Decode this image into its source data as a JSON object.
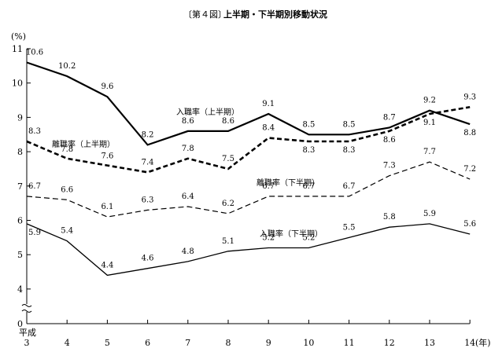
{
  "chart_data": {
    "type": "line",
    "figure_label": "〔第４図〕",
    "title": "上半期・下半期別移動状況",
    "y_unit": "(%)",
    "x_unit": "(年)",
    "x_era": "平成",
    "categories": [
      "3",
      "4",
      "5",
      "6",
      "7",
      "8",
      "9",
      "10",
      "11",
      "12",
      "13",
      "14"
    ],
    "y_ticks": [
      "11",
      "10",
      "9",
      "8",
      "7",
      "6",
      "5",
      "4",
      "0"
    ],
    "ylim": [
      4,
      11
    ],
    "y_axis_break": true,
    "grid": false,
    "series": [
      {
        "name": "入職率（上半期）",
        "style": "solid-thick",
        "values": [
          10.6,
          10.2,
          9.6,
          8.2,
          8.6,
          8.6,
          9.1,
          8.5,
          8.5,
          8.7,
          9.2,
          8.8
        ],
        "labels": [
          "10.6",
          "10.2",
          "9.6",
          "8.2",
          "8.6",
          "8.6",
          "9.1",
          "8.5",
          "8.5",
          "8.7",
          "9.2",
          "8.8"
        ]
      },
      {
        "name": "離職率（上半期）",
        "style": "dashed-thick",
        "values": [
          8.3,
          7.8,
          7.6,
          7.4,
          7.8,
          7.5,
          8.4,
          8.3,
          8.3,
          8.6,
          9.1,
          9.3
        ],
        "labels": [
          "8.3",
          "7.8",
          "7.6",
          "7.4",
          "7.8",
          "7.5",
          "8.4",
          "8.3",
          "8.3",
          "8.6",
          "9.1",
          "9.3"
        ]
      },
      {
        "name": "離職率（下半期）",
        "style": "dashed-thin",
        "values": [
          6.7,
          6.6,
          6.1,
          6.3,
          6.4,
          6.2,
          6.7,
          6.7,
          6.7,
          7.3,
          7.7,
          7.2
        ],
        "labels": [
          "6.7",
          "6.6",
          "6.1",
          "6.3",
          "6.4",
          "6.2",
          "6.7",
          "6.7",
          "6.7",
          "7.3",
          "7.7",
          "7.2"
        ]
      },
      {
        "name": "入職率（下半期）",
        "style": "solid-thin",
        "values": [
          5.9,
          5.4,
          4.4,
          4.6,
          4.8,
          5.1,
          5.2,
          5.2,
          5.5,
          5.8,
          5.9,
          5.6
        ],
        "labels": [
          "5.9",
          "5.4",
          "4.4",
          "4.6",
          "4.8",
          "5.1",
          "5.2",
          "5.2",
          "5.5",
          "5.8",
          "5.9",
          "5.6"
        ]
      }
    ]
  }
}
